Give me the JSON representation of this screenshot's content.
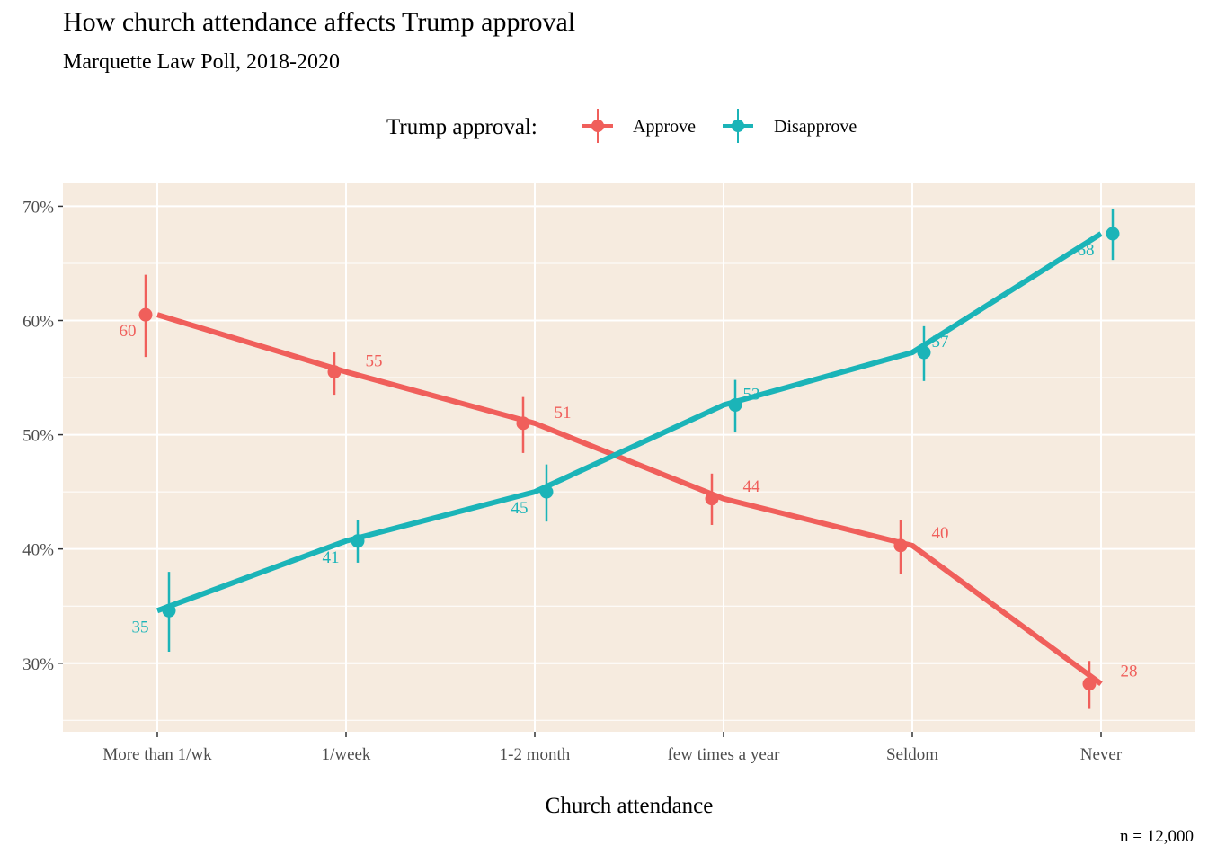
{
  "title": "How church attendance affects Trump approval",
  "subtitle": "Marquette Law Poll, 2018-2020",
  "caption": "n = 12,000",
  "colors": {
    "panel_bg": "#F6EBDF",
    "grid": "#FFFFFF",
    "approve": "#F05F5B",
    "disapprove": "#1BB4B8"
  },
  "chart_data": {
    "type": "line",
    "title": "How church attendance affects Trump approval",
    "subtitle": "Marquette Law Poll, 2018-2020",
    "xlabel": "Church attendance",
    "ylabel": "",
    "categories": [
      "More than 1/wk",
      "1/week",
      "1-2 month",
      "few times a year",
      "Seldom",
      "Never"
    ],
    "ylim": [
      24,
      72
    ],
    "yticks": [
      30,
      40,
      50,
      60,
      70
    ],
    "ytick_labels": [
      "30%",
      "40%",
      "50%",
      "60%",
      "70%"
    ],
    "legend_title": "Trump approval:",
    "legend_position": "top",
    "grid": true,
    "series": [
      {
        "name": "Approve",
        "values": [
          60.5,
          55.5,
          51.0,
          44.4,
          40.3,
          28.2
        ],
        "lower": [
          56.8,
          53.5,
          48.4,
          42.1,
          37.8,
          26.0
        ],
        "upper": [
          64.0,
          57.2,
          53.3,
          46.6,
          42.5,
          30.2
        ],
        "labels": [
          "60",
          "55",
          "51",
          "44",
          "40",
          "28"
        ]
      },
      {
        "name": "Disapprove",
        "values": [
          34.6,
          40.7,
          45.0,
          52.6,
          57.2,
          67.6
        ],
        "lower": [
          31.0,
          38.8,
          42.4,
          50.2,
          54.7,
          65.3
        ],
        "upper": [
          38.0,
          42.5,
          47.4,
          54.8,
          59.5,
          69.8
        ],
        "labels": [
          "35",
          "41",
          "45",
          "53",
          "57",
          "68"
        ]
      }
    ]
  }
}
